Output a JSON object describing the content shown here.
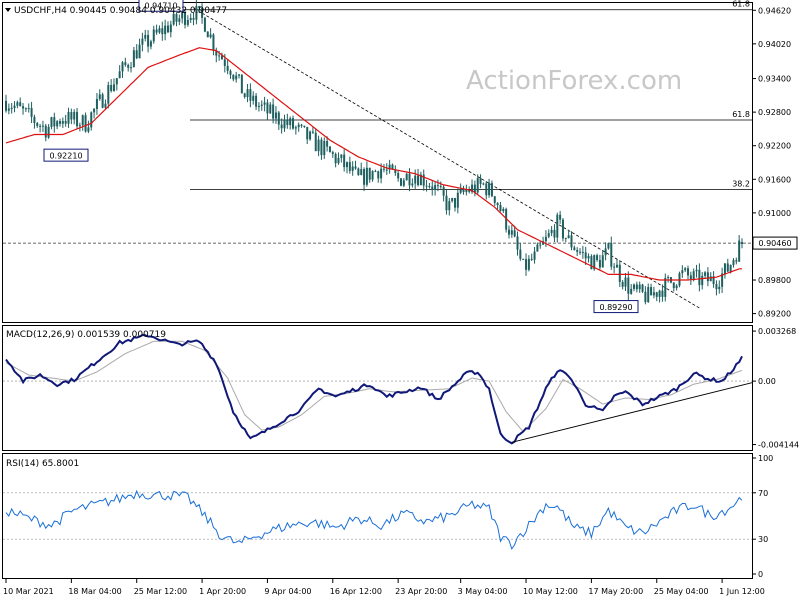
{
  "header": {
    "symbol_line": "USDCHF,H4  0.90445 0.90484 0.90432 0.90477",
    "watermark": "ActionForex.com"
  },
  "colors": {
    "candles": "#1f5f5f",
    "ma": "#dd1111",
    "macd": "#101878",
    "signal": "#aaaaaa",
    "rsi": "#1a6fd8",
    "price_tag": "#101878"
  },
  "chart_data": [
    {
      "type": "candlestick",
      "panel": "price",
      "title": "USDCHF,H4",
      "ohlc_last": {
        "open": 0.90445,
        "high": 0.90484,
        "low": 0.90432,
        "close": 0.90477
      },
      "ylim": [
        0.8905,
        0.9475
      ],
      "y_ticks": [
        "0.94620",
        "0.94020",
        "0.93400",
        "0.92800",
        "0.92200",
        "0.91600",
        "0.91000",
        "0.90460",
        "0.89800",
        "0.89200"
      ],
      "current_price": 0.9046,
      "current_price_label": "0.90460",
      "x_ticks": [
        "10 Mar 2021",
        "18 Mar 04:00",
        "25 Mar 12:00",
        "1 Apr 20:00",
        "9 Apr 04:00",
        "16 Apr 12:00",
        "23 Apr 20:00",
        "3 May 04:00",
        "10 May 12:00",
        "17 May 20:00",
        "25 May 04:00",
        "1 Jun 12:00"
      ],
      "annotations": [
        {
          "text": "0.94710",
          "value": 0.9471
        },
        {
          "text": "0.92210",
          "value": 0.9221
        },
        {
          "text": "0.89290",
          "value": 0.8929
        }
      ],
      "fib_levels": [
        {
          "label": "61.8",
          "value": 0.9463
        },
        {
          "label": "61.8",
          "value": 0.9266
        },
        {
          "label": "38.2",
          "value": 0.9142
        }
      ],
      "anchors": [
        [
          0,
          0.93
        ],
        [
          6,
          0.928
        ],
        [
          14,
          0.925
        ],
        [
          20,
          0.927
        ],
        [
          28,
          0.926
        ],
        [
          36,
          0.932
        ],
        [
          46,
          0.939
        ],
        [
          56,
          0.943
        ],
        [
          62,
          0.945
        ],
        [
          66,
          0.946
        ],
        [
          70,
          0.944
        ],
        [
          74,
          0.939
        ],
        [
          79,
          0.936
        ],
        [
          84,
          0.931
        ],
        [
          92,
          0.928
        ],
        [
          102,
          0.925
        ],
        [
          110,
          0.922
        ],
        [
          118,
          0.919
        ],
        [
          124,
          0.916
        ],
        [
          132,
          0.918
        ],
        [
          138,
          0.916
        ],
        [
          144,
          0.917
        ],
        [
          150,
          0.915
        ],
        [
          156,
          0.911
        ],
        [
          162,
          0.914
        ],
        [
          168,
          0.915
        ],
        [
          172,
          0.913
        ],
        [
          178,
          0.906
        ],
        [
          182,
          0.9
        ],
        [
          186,
          0.902
        ],
        [
          190,
          0.905
        ],
        [
          194,
          0.908
        ],
        [
          198,
          0.905
        ],
        [
          204,
          0.902
        ],
        [
          208,
          0.901
        ],
        [
          212,
          0.903
        ],
        [
          216,
          0.899
        ],
        [
          220,
          0.896
        ],
        [
          226,
          0.895
        ],
        [
          232,
          0.897
        ],
        [
          238,
          0.899
        ],
        [
          244,
          0.898
        ],
        [
          250,
          0.898
        ],
        [
          254,
          0.9
        ],
        [
          258,
          0.904
        ]
      ],
      "ma_anchors": [
        [
          0,
          0.9225
        ],
        [
          10,
          0.924
        ],
        [
          20,
          0.924
        ],
        [
          30,
          0.926
        ],
        [
          40,
          0.931
        ],
        [
          50,
          0.936
        ],
        [
          60,
          0.938
        ],
        [
          68,
          0.9395
        ],
        [
          74,
          0.939
        ],
        [
          84,
          0.935
        ],
        [
          94,
          0.931
        ],
        [
          104,
          0.927
        ],
        [
          114,
          0.923
        ],
        [
          124,
          0.92
        ],
        [
          134,
          0.918
        ],
        [
          144,
          0.917
        ],
        [
          154,
          0.915
        ],
        [
          164,
          0.914
        ],
        [
          172,
          0.911
        ],
        [
          180,
          0.907
        ],
        [
          188,
          0.905
        ],
        [
          196,
          0.903
        ],
        [
          204,
          0.901
        ],
        [
          212,
          0.899
        ],
        [
          220,
          0.899
        ],
        [
          230,
          0.898
        ],
        [
          240,
          0.898
        ],
        [
          250,
          0.8985
        ],
        [
          258,
          0.9
        ]
      ],
      "candle_count": 260
    },
    {
      "type": "line",
      "panel": "macd",
      "title": "MACD(12,26,9) 0.001539 0.000719",
      "ylim": [
        -0.0045,
        0.0036
      ],
      "y_ticks": [
        "0.003268",
        "0.00",
        "-0.004144"
      ],
      "macd": [
        [
          0,
          0.0015
        ],
        [
          6,
          0.0
        ],
        [
          12,
          0.0004
        ],
        [
          18,
          -0.0002
        ],
        [
          24,
          0.0001
        ],
        [
          30,
          0.001
        ],
        [
          40,
          0.0025
        ],
        [
          50,
          0.003
        ],
        [
          60,
          0.0024
        ],
        [
          68,
          0.0026
        ],
        [
          74,
          0.0012
        ],
        [
          80,
          -0.002
        ],
        [
          86,
          -0.0038
        ],
        [
          92,
          -0.0032
        ],
        [
          98,
          -0.0025
        ],
        [
          104,
          -0.0018
        ],
        [
          110,
          -0.0005
        ],
        [
          116,
          -0.001
        ],
        [
          122,
          -0.0006
        ],
        [
          128,
          -0.0002
        ],
        [
          134,
          -0.001
        ],
        [
          140,
          -0.0007
        ],
        [
          146,
          -0.0004
        ],
        [
          152,
          -0.0012
        ],
        [
          158,
          -0.0002
        ],
        [
          162,
          0.0005
        ],
        [
          166,
          0.0006
        ],
        [
          170,
          -0.0005
        ],
        [
          174,
          -0.0035
        ],
        [
          178,
          -0.004
        ],
        [
          184,
          -0.003
        ],
        [
          190,
          -0.0005
        ],
        [
          194,
          0.0007
        ],
        [
          198,
          0.0004
        ],
        [
          204,
          -0.0015
        ],
        [
          210,
          -0.002
        ],
        [
          214,
          -0.001
        ],
        [
          218,
          -0.0007
        ],
        [
          224,
          -0.0015
        ],
        [
          230,
          -0.001
        ],
        [
          236,
          -0.0005
        ],
        [
          242,
          0.0005
        ],
        [
          248,
          0.0001
        ],
        [
          252,
          0.0
        ],
        [
          256,
          0.0008
        ],
        [
          259,
          0.0015
        ]
      ],
      "signal": [
        [
          0,
          0.0012
        ],
        [
          8,
          0.0004
        ],
        [
          16,
          0.0002
        ],
        [
          24,
          0.0
        ],
        [
          32,
          0.0006
        ],
        [
          42,
          0.0018
        ],
        [
          52,
          0.0026
        ],
        [
          62,
          0.0026
        ],
        [
          70,
          0.002
        ],
        [
          78,
          0.0002
        ],
        [
          84,
          -0.0022
        ],
        [
          90,
          -0.0032
        ],
        [
          96,
          -0.003
        ],
        [
          104,
          -0.0022
        ],
        [
          112,
          -0.001
        ],
        [
          120,
          -0.0008
        ],
        [
          128,
          -0.0005
        ],
        [
          136,
          -0.0007
        ],
        [
          146,
          -0.0006
        ],
        [
          156,
          -0.0005
        ],
        [
          164,
          0.0002
        ],
        [
          170,
          0.0
        ],
        [
          176,
          -0.002
        ],
        [
          182,
          -0.0033
        ],
        [
          190,
          -0.0018
        ],
        [
          196,
          0.0001
        ],
        [
          202,
          -0.0005
        ],
        [
          210,
          -0.0015
        ],
        [
          218,
          -0.0011
        ],
        [
          226,
          -0.0012
        ],
        [
          234,
          -0.0009
        ],
        [
          242,
          -0.0002
        ],
        [
          250,
          0.0001
        ],
        [
          259,
          0.0007
        ]
      ]
    },
    {
      "type": "line",
      "panel": "rsi",
      "title": "RSI(14) 65.8001",
      "ylim": [
        0,
        100
      ],
      "y_ticks": [
        "100",
        "70",
        "30",
        "0"
      ],
      "levels": [
        70,
        30
      ],
      "rsi_anchors": [
        [
          0,
          55
        ],
        [
          8,
          48
        ],
        [
          16,
          42
        ],
        [
          24,
          55
        ],
        [
          32,
          60
        ],
        [
          40,
          65
        ],
        [
          46,
          70
        ],
        [
          52,
          68
        ],
        [
          58,
          68
        ],
        [
          64,
          66
        ],
        [
          70,
          50
        ],
        [
          76,
          32
        ],
        [
          82,
          26
        ],
        [
          88,
          33
        ],
        [
          94,
          38
        ],
        [
          100,
          42
        ],
        [
          108,
          45
        ],
        [
          116,
          40
        ],
        [
          124,
          48
        ],
        [
          132,
          42
        ],
        [
          140,
          52
        ],
        [
          148,
          45
        ],
        [
          156,
          50
        ],
        [
          164,
          60
        ],
        [
          170,
          56
        ],
        [
          174,
          32
        ],
        [
          178,
          26
        ],
        [
          184,
          42
        ],
        [
          190,
          60
        ],
        [
          194,
          58
        ],
        [
          200,
          40
        ],
        [
          206,
          35
        ],
        [
          212,
          55
        ],
        [
          218,
          40
        ],
        [
          224,
          35
        ],
        [
          230,
          45
        ],
        [
          236,
          55
        ],
        [
          242,
          60
        ],
        [
          248,
          50
        ],
        [
          254,
          56
        ],
        [
          259,
          66
        ]
      ]
    }
  ]
}
